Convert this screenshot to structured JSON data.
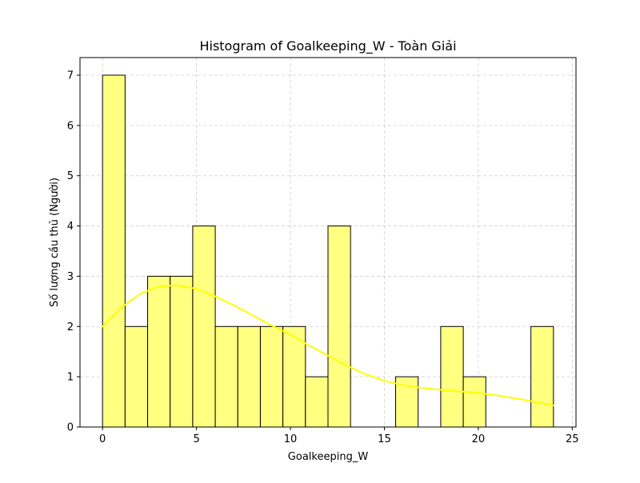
{
  "chart_data": {
    "type": "bar",
    "title": "Histogram of Goalkeeping_W - Toàn Giải",
    "xlabel": "Goalkeeping_W",
    "ylabel": "Số lượng cầu thủ (Người)",
    "xlim": [
      -1.2,
      25.2
    ],
    "ylim": [
      0,
      7.35
    ],
    "xticks": [
      0,
      5,
      10,
      15,
      20,
      25
    ],
    "yticks": [
      0,
      1,
      2,
      3,
      4,
      5,
      6,
      7
    ],
    "grid": true,
    "bin_start": 0,
    "bin_end": 24,
    "bin_count": 20,
    "values": [
      7,
      2,
      3,
      3,
      4,
      2,
      2,
      2,
      2,
      1,
      4,
      0,
      0,
      1,
      0,
      2,
      1,
      0,
      0,
      2
    ],
    "bar_color": "#ffff80",
    "bar_edge_color": "#000000",
    "kde": {
      "x": [
        0,
        1,
        2,
        3,
        4,
        5,
        6,
        7,
        8,
        9,
        10,
        11,
        12,
        13,
        14,
        15,
        16,
        17,
        18,
        19,
        20,
        21,
        22,
        23,
        24
      ],
      "y": [
        2.0,
        2.38,
        2.65,
        2.8,
        2.82,
        2.75,
        2.6,
        2.42,
        2.22,
        2.02,
        1.84,
        1.62,
        1.42,
        1.22,
        1.05,
        0.92,
        0.83,
        0.78,
        0.74,
        0.71,
        0.68,
        0.63,
        0.57,
        0.5,
        0.43
      ],
      "color": "#ffff00"
    }
  }
}
